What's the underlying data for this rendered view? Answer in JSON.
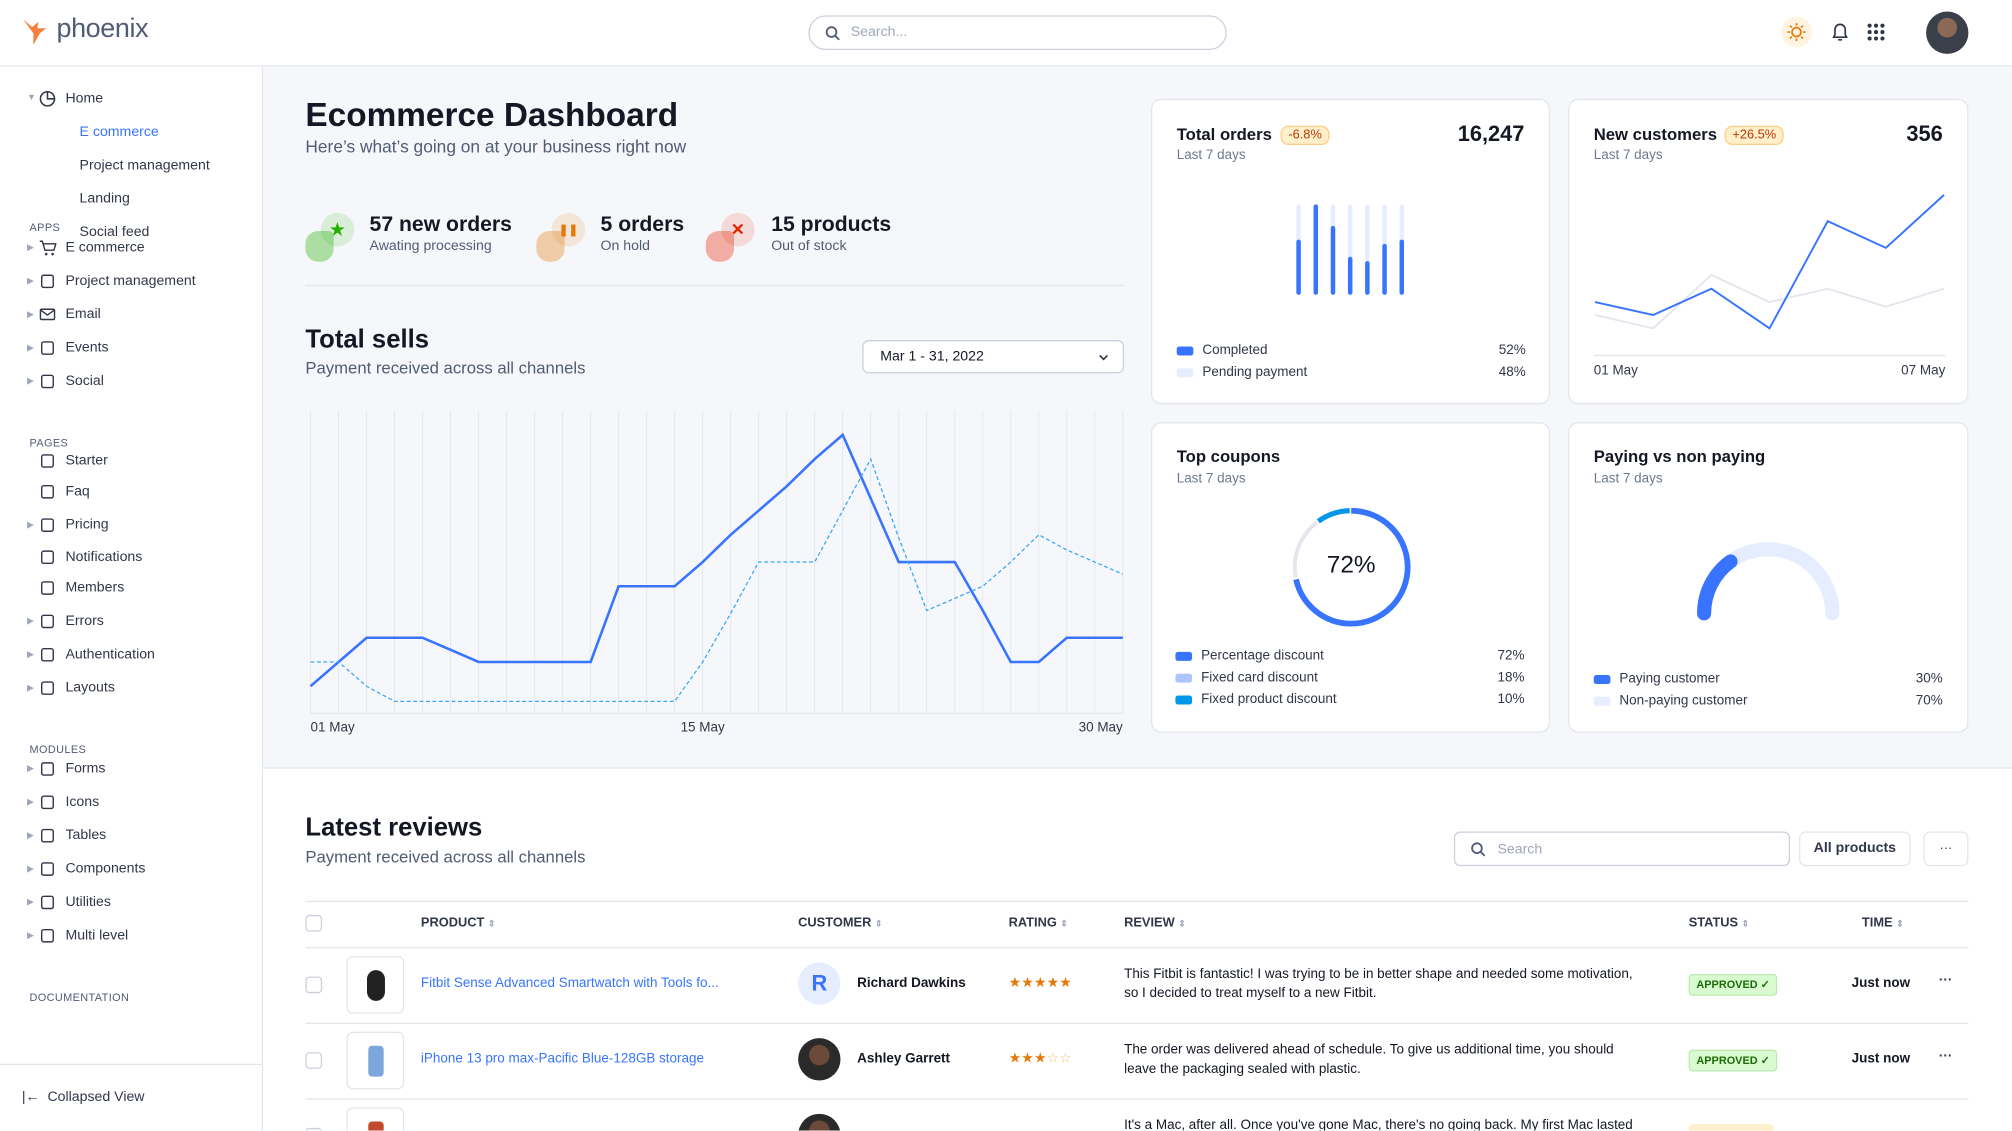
{
  "header": {
    "brand": "phoenix",
    "search_placeholder": "Search..."
  },
  "sidebar": {
    "home": {
      "label": "Home",
      "children": [
        "E commerce",
        "Project management",
        "Landing",
        "Social feed"
      ]
    },
    "sections": [
      {
        "title": "APPS",
        "items": [
          {
            "label": "E commerce",
            "icon": "cart-icon",
            "caret": true
          },
          {
            "label": "Project management",
            "icon": "clipboard-icon",
            "caret": true
          },
          {
            "label": "Email",
            "icon": "mail-icon",
            "caret": true
          },
          {
            "label": "Events",
            "icon": "clipboard-icon",
            "caret": true
          },
          {
            "label": "Social",
            "icon": "share-icon",
            "caret": true
          }
        ]
      },
      {
        "title": "PAGES",
        "items": [
          {
            "label": "Starter",
            "icon": "compass-icon",
            "caret": false
          },
          {
            "label": "Faq",
            "icon": "help-icon",
            "caret": false
          },
          {
            "label": "Pricing",
            "icon": "tag-icon",
            "caret": true
          },
          {
            "label": "Notifications",
            "icon": "bell-icon",
            "caret": false
          },
          {
            "label": "Members",
            "icon": "users-icon",
            "caret": false
          },
          {
            "label": "Errors",
            "icon": "alert-icon",
            "caret": true
          },
          {
            "label": "Authentication",
            "icon": "lock-icon",
            "caret": true
          },
          {
            "label": "Layouts",
            "icon": "layout-icon",
            "caret": true
          }
        ]
      },
      {
        "title": "MODULES",
        "items": [
          {
            "label": "Forms",
            "icon": "file-icon",
            "caret": true
          },
          {
            "label": "Icons",
            "icon": "grid-icon",
            "caret": true
          },
          {
            "label": "Tables",
            "icon": "columns-icon",
            "caret": true
          },
          {
            "label": "Components",
            "icon": "package-icon",
            "caret": true
          },
          {
            "label": "Utilities",
            "icon": "tool-icon",
            "caret": true
          },
          {
            "label": "Multi level",
            "icon": "layers-icon",
            "caret": true
          }
        ]
      },
      {
        "title": "DOCUMENTATION",
        "items": []
      }
    ],
    "collapse_label": "Collapsed View"
  },
  "page": {
    "title": "Ecommerce Dashboard",
    "subtitle": "Here’s what’s going on at your business right now"
  },
  "stats": [
    {
      "value": "57 new orders",
      "label": "Awating processing",
      "color": "#25b003",
      "icon": "star-icon"
    },
    {
      "value": "5 orders",
      "label": "On hold",
      "color": "#e5780b",
      "icon": "pause-icon"
    },
    {
      "value": "15 products",
      "label": "Out of stock",
      "color": "#ec1f00",
      "icon": "x-icon"
    }
  ],
  "total_sells": {
    "title": "Total sells",
    "subtitle": "Payment received across all channels",
    "date_range": "Mar 1 - 31, 2022"
  },
  "chart_data": [
    {
      "type": "line",
      "title": "Total sells",
      "x_ticks": [
        "01 May",
        "15 May",
        "30 May"
      ],
      "ylim": [
        0,
        100
      ],
      "grid": "vertical",
      "x": [
        "01 May",
        "02 May",
        "03 May",
        "04 May",
        "05 May",
        "06 May",
        "07 May",
        "08 May",
        "09 May",
        "10 May",
        "11 May",
        "12 May",
        "13 May",
        "14 May",
        "15 May",
        "16 May",
        "17 May",
        "18 May",
        "19 May",
        "20 May",
        "21 May",
        "22 May",
        "23 May",
        "24 May",
        "25 May",
        "26 May",
        "27 May",
        "28 May",
        "29 May",
        "30 May"
      ],
      "series": [
        {
          "style": "solid",
          "color": "#3874ff",
          "values": [
            9,
            17,
            25,
            25,
            25,
            21,
            17,
            17,
            17,
            17,
            17,
            42,
            42,
            42,
            50,
            59,
            67,
            75,
            84,
            92,
            71,
            50,
            50,
            50,
            34,
            17,
            17,
            25,
            25,
            25
          ]
        },
        {
          "style": "dashed",
          "color": "#3ba8f5",
          "values": [
            17,
            17,
            9,
            4,
            4,
            4,
            4,
            4,
            4,
            4,
            4,
            4,
            4,
            4,
            17,
            33,
            50,
            50,
            50,
            67,
            84,
            58,
            34,
            38,
            42,
            50,
            59,
            54,
            50,
            46
          ]
        }
      ]
    },
    {
      "type": "bar",
      "title": "Total orders",
      "subtitle": "Last 7 days",
      "value": "16,247",
      "change": "-6.8%",
      "stacked": true,
      "series": [
        {
          "name": "Completed",
          "share": "52%",
          "color": "#3874ff",
          "values": [
            59,
            100,
            75,
            39,
            34,
            54,
            59
          ]
        },
        {
          "name": "Pending payment",
          "share": "48%",
          "color": "#e5edff",
          "values": [
            41,
            0,
            25,
            61,
            66,
            46,
            41
          ]
        }
      ]
    },
    {
      "type": "line",
      "title": "New customers",
      "subtitle": "Last 7 days",
      "value": "356",
      "change": "+26.5%",
      "x_ticks": [
        "01 May",
        "07 May"
      ],
      "series": [
        {
          "color": "#3874ff",
          "values": [
            128,
            97,
            160,
            65,
            322,
            258,
            385
          ]
        },
        {
          "color": "#e3e6ed",
          "values": [
            97,
            65,
            193,
            128,
            160,
            117,
            160
          ]
        }
      ]
    },
    {
      "type": "pie",
      "title": "Top coupons",
      "subtitle": "Last 7 days",
      "center_label": "72%",
      "slices": [
        {
          "name": "Percentage discount",
          "value": 72,
          "label": "72%",
          "color": "#3874ff"
        },
        {
          "name": "Fixed card discount",
          "value": 18,
          "label": "18%",
          "color": "#adc5ff"
        },
        {
          "name": "Fixed product discount",
          "value": 10,
          "label": "10%",
          "color": "#0097eb"
        }
      ]
    },
    {
      "type": "pie",
      "title": "Paying vs non paying",
      "subtitle": "Last 7 days",
      "gauge": true,
      "slices": [
        {
          "name": "Paying customer",
          "value": 30,
          "label": "30%",
          "color": "#3874ff"
        },
        {
          "name": "Non-paying customer",
          "value": 70,
          "label": "70%",
          "color": "#e5edff"
        }
      ]
    }
  ],
  "reviews": {
    "title": "Latest reviews",
    "subtitle": "Payment received across all channels",
    "search_placeholder": "Search",
    "filter_label": "All products",
    "more_label": "···",
    "columns": [
      "PRODUCT",
      "CUSTOMER",
      "RATING",
      "REVIEW",
      "STATUS",
      "TIME"
    ],
    "rows": [
      {
        "product": "Fitbit Sense Advanced Smartwatch with Tools fo...",
        "customer": "Richard Dawkins",
        "initial": "R",
        "rating": 5,
        "review": [
          "This Fitbit is fantastic! I was trying to be in better shape and needed some motivation,",
          "so I decided to treat myself to a new Fitbit."
        ],
        "status": "APPROVED ✓",
        "time": "Just now"
      },
      {
        "product": "iPhone 13 pro max-Pacific Blue-128GB storage",
        "customer": "Ashley Garrett",
        "initial": "",
        "rating": 3,
        "review": [
          "The order was delivered ahead of schedule. To give us additional time, you should",
          "leave the packaging sealed with plastic."
        ],
        "status": "APPROVED ✓",
        "time": "Just now"
      },
      {
        "product": "",
        "customer": "",
        "initial": "",
        "rating": 0,
        "review": [
          "It's a Mac, after all. Once you've gone Mac, there's no going back. My first Mac lasted",
          ""
        ],
        "status": "",
        "time": ""
      }
    ]
  }
}
